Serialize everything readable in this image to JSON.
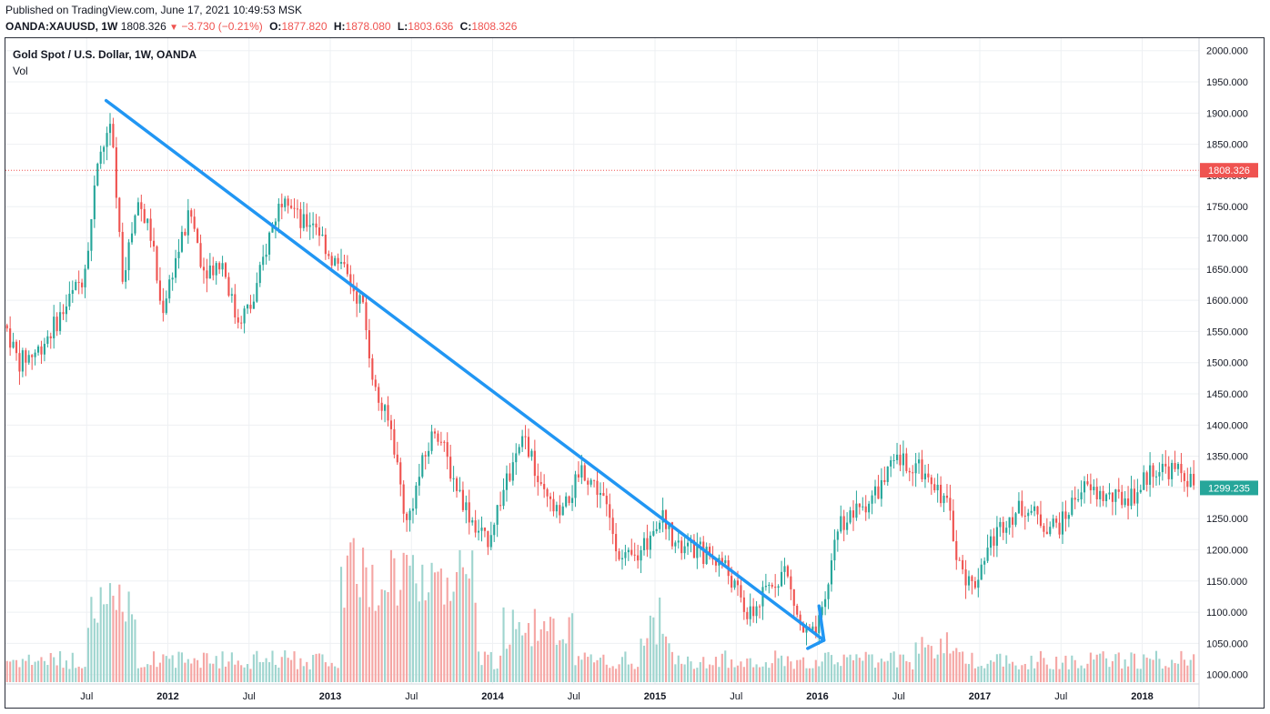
{
  "header": {
    "published": "Published on TradingView.com, June 17, 2021 10:49:53 MSK",
    "symbol": "OANDA:XAUUSD, 1W",
    "last": "1808.326",
    "change": "−3.730 (−0.21%)",
    "o_label": "O:",
    "o_value": "1877.820",
    "h_label": "H:",
    "h_value": "1878.080",
    "l_label": "L:",
    "l_value": "1803.636",
    "c_label": "C:",
    "c_value": "1808.326"
  },
  "legend": {
    "title": "Gold Spot / U.S. Dollar, 1W, OANDA",
    "vol": "Vol"
  },
  "colors": {
    "up": "#26a69a",
    "down": "#ef5350",
    "up_vol": "#9fd5cf",
    "down_vol": "#f5a6a4",
    "trendline": "#2196f3",
    "grid": "#eef0f3"
  },
  "chart_data": {
    "type": "candlestick",
    "y_axis_ticks": [
      "2000.000",
      "1950.000",
      "1900.000",
      "1850.000",
      "1800.000",
      "1750.000",
      "1700.000",
      "1650.000",
      "1600.000",
      "1550.000",
      "1500.000",
      "1450.000",
      "1400.000",
      "1350.000",
      "1300.000",
      "1250.000",
      "1200.000",
      "1150.000",
      "1100.000",
      "1050.000",
      "1000.000"
    ],
    "ylim": [
      985,
      2020
    ],
    "x_axis_ticks": [
      {
        "label": "Jul",
        "t": 2011.5
      },
      {
        "label": "2012",
        "t": 2012.0
      },
      {
        "label": "Jul",
        "t": 2012.5
      },
      {
        "label": "2013",
        "t": 2013.0
      },
      {
        "label": "Jul",
        "t": 2013.5
      },
      {
        "label": "2014",
        "t": 2014.0
      },
      {
        "label": "Jul",
        "t": 2014.5
      },
      {
        "label": "2015",
        "t": 2015.0
      },
      {
        "label": "Jul",
        "t": 2015.5
      },
      {
        "label": "2016",
        "t": 2016.0
      },
      {
        "label": "Jul",
        "t": 2016.5
      },
      {
        "label": "2017",
        "t": 2017.0
      },
      {
        "label": "Jul",
        "t": 2017.5
      },
      {
        "label": "2018",
        "t": 2018.0
      }
    ],
    "xlim": [
      2011.0,
      2018.35
    ],
    "anchors": [
      [
        2011.0,
        1560
      ],
      [
        2011.08,
        1500
      ],
      [
        2011.2,
        1520
      ],
      [
        2011.35,
        1580
      ],
      [
        2011.48,
        1640
      ],
      [
        2011.58,
        1830
      ],
      [
        2011.65,
        1880
      ],
      [
        2011.72,
        1640
      ],
      [
        2011.82,
        1760
      ],
      [
        2011.9,
        1700
      ],
      [
        2011.96,
        1580
      ],
      [
        2012.04,
        1660
      ],
      [
        2012.14,
        1740
      ],
      [
        2012.22,
        1650
      ],
      [
        2012.34,
        1660
      ],
      [
        2012.42,
        1570
      ],
      [
        2012.52,
        1590
      ],
      [
        2012.62,
        1700
      ],
      [
        2012.72,
        1780
      ],
      [
        2012.82,
        1720
      ],
      [
        2012.9,
        1730
      ],
      [
        2013.0,
        1670
      ],
      [
        2013.1,
        1640
      ],
      [
        2013.2,
        1590
      ],
      [
        2013.28,
        1450
      ],
      [
        2013.38,
        1390
      ],
      [
        2013.47,
        1240
      ],
      [
        2013.56,
        1330
      ],
      [
        2013.65,
        1400
      ],
      [
        2013.75,
        1320
      ],
      [
        2013.85,
        1260
      ],
      [
        2013.96,
        1210
      ],
      [
        2014.06,
        1290
      ],
      [
        2014.2,
        1380
      ],
      [
        2014.3,
        1290
      ],
      [
        2014.42,
        1250
      ],
      [
        2014.55,
        1330
      ],
      [
        2014.67,
        1290
      ],
      [
        2014.8,
        1180
      ],
      [
        2014.9,
        1190
      ],
      [
        2015.04,
        1260
      ],
      [
        2015.14,
        1200
      ],
      [
        2015.25,
        1200
      ],
      [
        2015.42,
        1180
      ],
      [
        2015.58,
        1090
      ],
      [
        2015.7,
        1140
      ],
      [
        2015.8,
        1170
      ],
      [
        2015.9,
        1070
      ],
      [
        2015.98,
        1060
      ],
      [
        2016.04,
        1100
      ],
      [
        2016.12,
        1240
      ],
      [
        2016.24,
        1260
      ],
      [
        2016.36,
        1290
      ],
      [
        2016.48,
        1340
      ],
      [
        2016.56,
        1340
      ],
      [
        2016.7,
        1320
      ],
      [
        2016.8,
        1270
      ],
      [
        2016.88,
        1170
      ],
      [
        2016.96,
        1140
      ],
      [
        2017.04,
        1200
      ],
      [
        2017.16,
        1250
      ],
      [
        2017.28,
        1270
      ],
      [
        2017.4,
        1240
      ],
      [
        2017.5,
        1240
      ],
      [
        2017.62,
        1300
      ],
      [
        2017.72,
        1290
      ],
      [
        2017.84,
        1280
      ],
      [
        2017.96,
        1290
      ],
      [
        2018.06,
        1330
      ],
      [
        2018.16,
        1330
      ],
      [
        2018.26,
        1320
      ],
      [
        2018.33,
        1299.235
      ]
    ],
    "volume_scale": [
      0,
      100
    ],
    "current_price": {
      "value": 1808.326,
      "label": "1808.326",
      "style": "dotted"
    },
    "last_price": {
      "value": 1299.235,
      "label": "1299.235"
    },
    "trendline": [
      [
        2011.62,
        1920
      ],
      [
        2016.04,
        1055
      ]
    ],
    "arrow_head": {
      "at": [
        2016.04,
        1055
      ],
      "wing_a": [
        2015.94,
        1042
      ],
      "wing_b": [
        2016.01,
        1110
      ]
    }
  }
}
